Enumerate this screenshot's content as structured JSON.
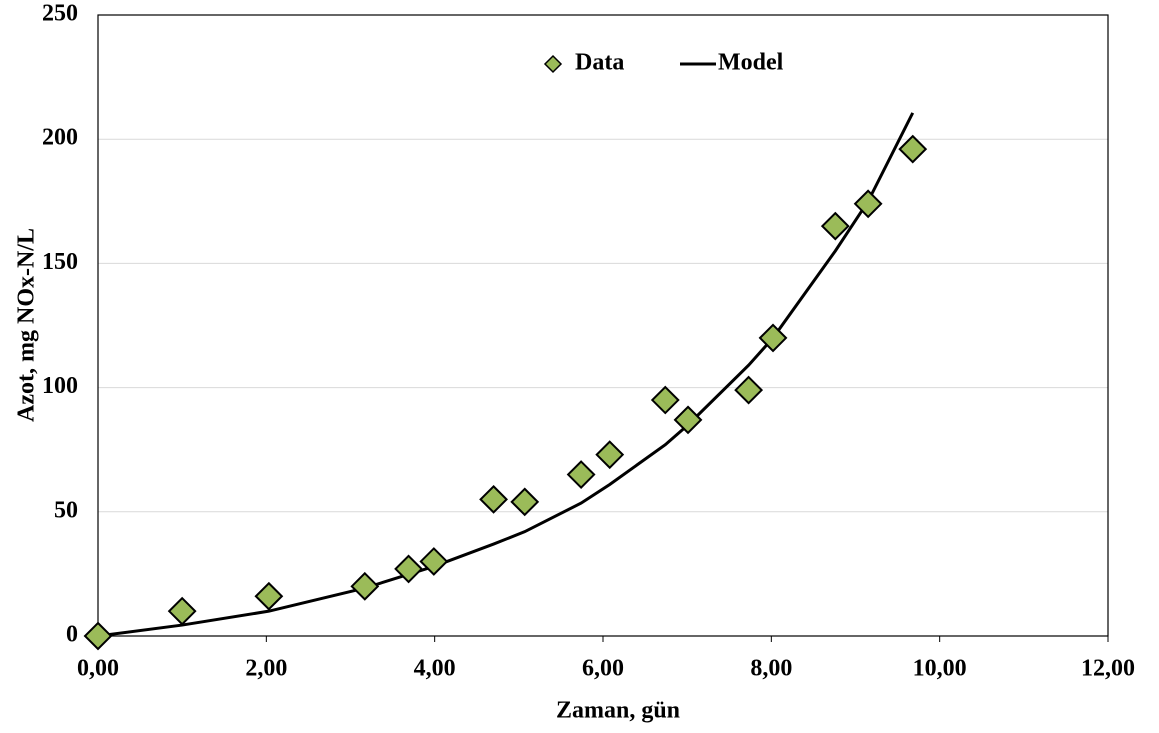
{
  "chart_data": {
    "type": "scatter-line",
    "xlabel": "Zaman, gün",
    "ylabel": "Azot, mg NOx-N/L",
    "xlim": [
      0,
      12
    ],
    "ylim": [
      0,
      250
    ],
    "xticks": [
      {
        "value": 0,
        "label": "0,00"
      },
      {
        "value": 2,
        "label": "2,00"
      },
      {
        "value": 4,
        "label": "4,00"
      },
      {
        "value": 6,
        "label": "6,00"
      },
      {
        "value": 8,
        "label": "8,00"
      },
      {
        "value": 10,
        "label": "10,00"
      },
      {
        "value": 12,
        "label": "12,00"
      }
    ],
    "yticks": [
      0,
      50,
      100,
      150,
      200,
      250
    ],
    "grid": true,
    "legend": "top",
    "series": [
      {
        "name": "Data",
        "kind": "scatter",
        "color": "#9bbb59",
        "x": [
          0,
          1.0,
          2.03,
          3.17,
          3.69,
          3.99,
          4.7,
          5.07,
          5.74,
          6.08,
          6.74,
          7.01,
          7.73,
          8.02,
          8.76,
          9.15,
          9.68
        ],
        "values": [
          0,
          10,
          16,
          20,
          27,
          30,
          55,
          54,
          65,
          73,
          95,
          87,
          99,
          120,
          165,
          174,
          196
        ]
      },
      {
        "name": "Model",
        "kind": "line",
        "color": "#000000",
        "x": [
          0,
          1.0,
          2.03,
          3.17,
          3.99,
          4.7,
          5.07,
          5.74,
          6.08,
          6.74,
          7.01,
          7.73,
          8.02,
          8.76,
          9.15,
          9.68
        ],
        "values": [
          0,
          4.4,
          10,
          19.3,
          28,
          37,
          42,
          53.5,
          61,
          77,
          85,
          109,
          120,
          155,
          175,
          210.6
        ]
      }
    ]
  }
}
